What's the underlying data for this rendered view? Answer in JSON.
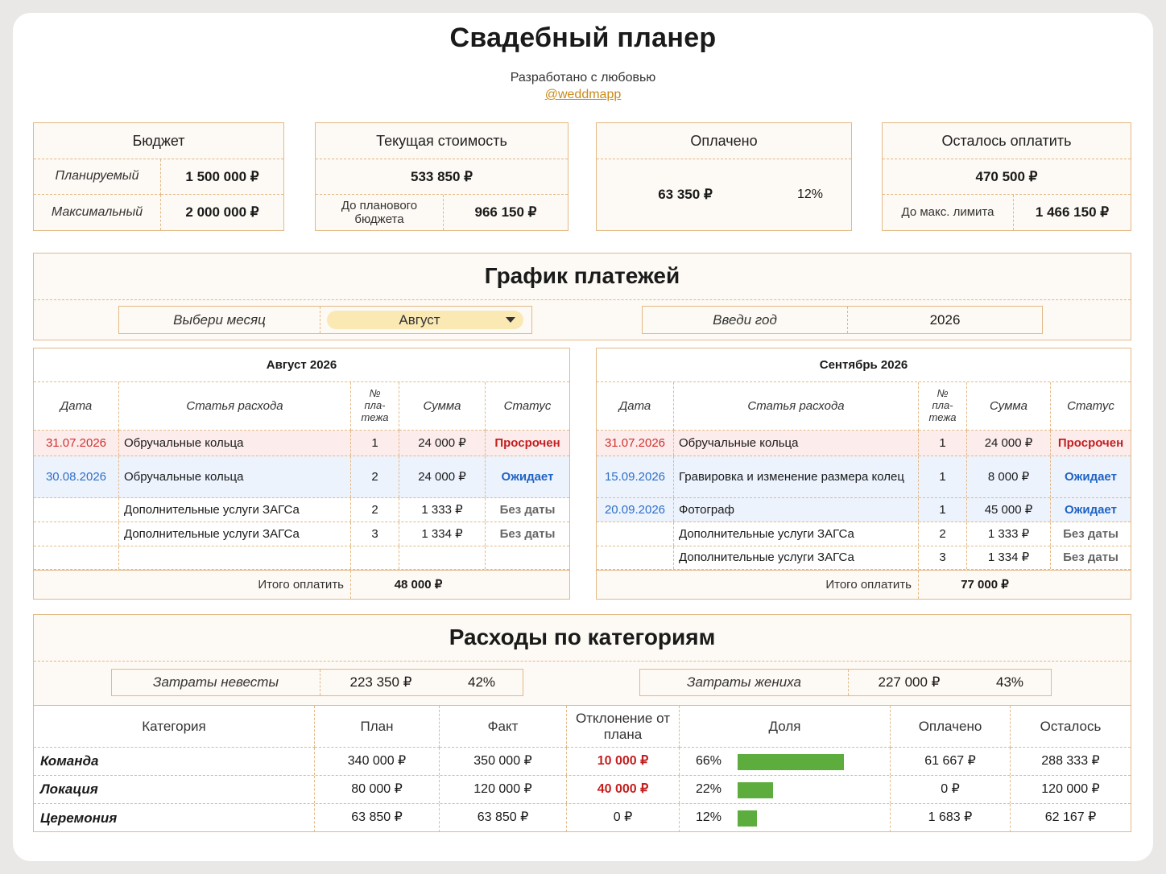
{
  "title": "Свадебный планер",
  "subtitle": "Разработано с любовью",
  "link": "@weddmapp",
  "summary": {
    "budget": {
      "title": "Бюджет",
      "planned_label": "Планируемый",
      "planned": "1 500 000 ₽",
      "max_label": "Максимальный",
      "max": "2 000 000 ₽"
    },
    "current": {
      "title": "Текущая стоимость",
      "value": "533 850 ₽",
      "to_plan_label": "До планового бюджета",
      "to_plan": "966 150 ₽"
    },
    "paid": {
      "title": "Оплачено",
      "value": "63 350 ₽",
      "percent": "12%"
    },
    "remaining": {
      "title": "Осталось оплатить",
      "value": "470 500 ₽",
      "to_max_label": "До макс. лимита",
      "to_max": "1 466 150 ₽"
    }
  },
  "schedule": {
    "title": "График платежей",
    "month_label": "Выбери месяц",
    "month": "Август",
    "year_label": "Введи год",
    "year": "2026",
    "headers": {
      "date": "Дата",
      "item": "Статья расхода",
      "num": "№ пла-тежа",
      "sum": "Сумма",
      "status": "Статус"
    },
    "total_label": "Итого оплатить",
    "left": {
      "title": "Август 2026",
      "total": "48 000 ₽",
      "rows": [
        {
          "date": "31.07.2026",
          "item": "Обручальные кольца",
          "num": "1",
          "sum": "24 000 ₽",
          "status": "Просрочен",
          "kind": "red"
        },
        {
          "date": "30.08.2026",
          "item": "Обручальные кольца",
          "num": "2",
          "sum": "24 000 ₽",
          "status": "Ожидает",
          "kind": "blue"
        },
        {
          "date": "",
          "item": "Дополнительные услуги ЗАГСа",
          "num": "2",
          "sum": "1 333 ₽",
          "status": "Без даты",
          "kind": "gray"
        },
        {
          "date": "",
          "item": "Дополнительные услуги ЗАГСа",
          "num": "3",
          "sum": "1 334 ₽",
          "status": "Без даты",
          "kind": "gray"
        },
        {
          "date": "",
          "item": "",
          "num": "",
          "sum": "",
          "status": "",
          "kind": "empty"
        }
      ]
    },
    "right": {
      "title": "Сентябрь 2026",
      "total": "77 000 ₽",
      "rows": [
        {
          "date": "31.07.2026",
          "item": "Обручальные кольца",
          "num": "1",
          "sum": "24 000 ₽",
          "status": "Просрочен",
          "kind": "red"
        },
        {
          "date": "15.09.2026",
          "item": "Гравировка и изменение размера колец",
          "num": "1",
          "sum": "8 000 ₽",
          "status": "Ожидает",
          "kind": "blue"
        },
        {
          "date": "20.09.2026",
          "item": "Фотограф",
          "num": "1",
          "sum": "45 000 ₽",
          "status": "Ожидает",
          "kind": "blue"
        },
        {
          "date": "",
          "item": "Дополнительные услуги ЗАГСа",
          "num": "2",
          "sum": "1 333 ₽",
          "status": "Без даты",
          "kind": "gray"
        },
        {
          "date": "",
          "item": "Дополнительные услуги ЗАГСа",
          "num": "3",
          "sum": "1 334 ₽",
          "status": "Без даты",
          "kind": "gray"
        }
      ]
    }
  },
  "categories": {
    "title": "Расходы по категориям",
    "bride": {
      "label": "Затраты невесты",
      "value": "223 350 ₽",
      "percent": "42%"
    },
    "groom": {
      "label": "Затраты жениха",
      "value": "227 000 ₽",
      "percent": "43%"
    },
    "headers": {
      "cat": "Категория",
      "plan": "План",
      "fact": "Факт",
      "dev": "Отклонение от плана",
      "share": "Доля",
      "paid": "Оплачено",
      "left": "Осталось"
    },
    "rows": [
      {
        "cat": "Команда",
        "plan": "340 000 ₽",
        "fact": "350 000 ₽",
        "dev": "10 000 ₽",
        "dev_red": true,
        "share": "66%",
        "share_value": 0.66,
        "paid": "61 667 ₽",
        "left": "288 333 ₽"
      },
      {
        "cat": "Локация",
        "plan": "80 000 ₽",
        "fact": "120 000 ₽",
        "dev": "40 000 ₽",
        "dev_red": true,
        "share": "22%",
        "share_value": 0.22,
        "paid": "0 ₽",
        "left": "120 000 ₽"
      },
      {
        "cat": "Церемония",
        "plan": "63 850 ₽",
        "fact": "63 850 ₽",
        "dev": "0 ₽",
        "dev_red": false,
        "share": "12%",
        "share_value": 0.12,
        "paid": "1 683 ₽",
        "left": "62 167 ₽"
      }
    ]
  }
}
